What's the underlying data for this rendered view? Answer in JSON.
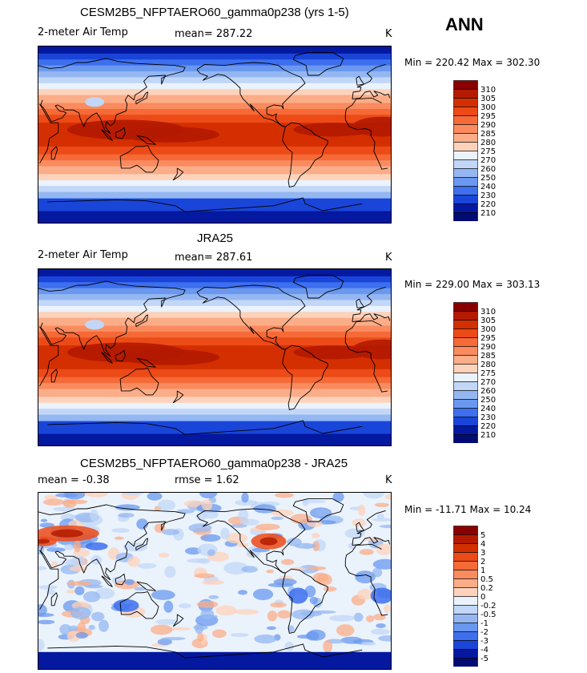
{
  "season": "ANN",
  "chart_data": [
    {
      "type": "heatmap",
      "title": "CESM2B5_NFPTAERO60_gamma0p238 (yrs 1-5)",
      "variable": "2-meter Air Temp",
      "stat_text": "mean= 287.22",
      "units": "K",
      "minmax": "Min = 220.42 Max = 302.30",
      "min": 220.42,
      "max": 302.3,
      "mean": 287.22,
      "colorbar_levels": [
        "310",
        "305",
        "300",
        "295",
        "290",
        "285",
        "280",
        "275",
        "270",
        "260",
        "250",
        "240",
        "230",
        "220",
        "210"
      ],
      "colors": [
        "#8a0000",
        "#b31a00",
        "#d42f00",
        "#ec4a17",
        "#f56a37",
        "#f98b5f",
        "#fbad88",
        "#fdd2bb",
        "#eaf2fc",
        "#c2d7f7",
        "#94b7f2",
        "#6a98ef",
        "#3d6fee",
        "#1a45d9",
        "#0418a0",
        "#010b73"
      ]
    },
    {
      "type": "heatmap",
      "title": "JRA25",
      "variable": "2-meter Air Temp",
      "stat_text": "mean= 287.61",
      "units": "K",
      "minmax": "Min = 229.00 Max = 303.13",
      "min": 229.0,
      "max": 303.13,
      "mean": 287.61,
      "colorbar_levels": [
        "310",
        "305",
        "300",
        "295",
        "290",
        "285",
        "280",
        "275",
        "270",
        "260",
        "250",
        "240",
        "230",
        "220",
        "210"
      ],
      "colors": [
        "#8a0000",
        "#b31a00",
        "#d42f00",
        "#ec4a17",
        "#f56a37",
        "#f98b5f",
        "#fbad88",
        "#fdd2bb",
        "#eaf2fc",
        "#c2d7f7",
        "#94b7f2",
        "#6a98ef",
        "#3d6fee",
        "#1a45d9",
        "#0418a0",
        "#010b73"
      ]
    },
    {
      "type": "heatmap",
      "title": "CESM2B5_NFPTAERO60_gamma0p238 - JRA25",
      "variable": "mean =   -0.38",
      "stat_text": "rmse =    1.62",
      "units": "K",
      "minmax": "Min = -11.71 Max =  10.24",
      "min": -11.71,
      "max": 10.24,
      "mean": -0.38,
      "rmse": 1.62,
      "colorbar_levels": [
        "5",
        "4",
        "3",
        "2",
        "1",
        "0.5",
        "0.2",
        "0",
        "-0.2",
        "-0.5",
        "-1",
        "-2",
        "-3",
        "-4",
        "-5"
      ],
      "colors": [
        "#8a0000",
        "#b31a00",
        "#d42f00",
        "#ec4a17",
        "#f56a37",
        "#f98b5f",
        "#fbad88",
        "#fdd2bb",
        "#eaf2fc",
        "#c2d7f7",
        "#94b7f2",
        "#6a98ef",
        "#3d6fee",
        "#1a45d9",
        "#0418a0",
        "#010b73"
      ]
    }
  ]
}
